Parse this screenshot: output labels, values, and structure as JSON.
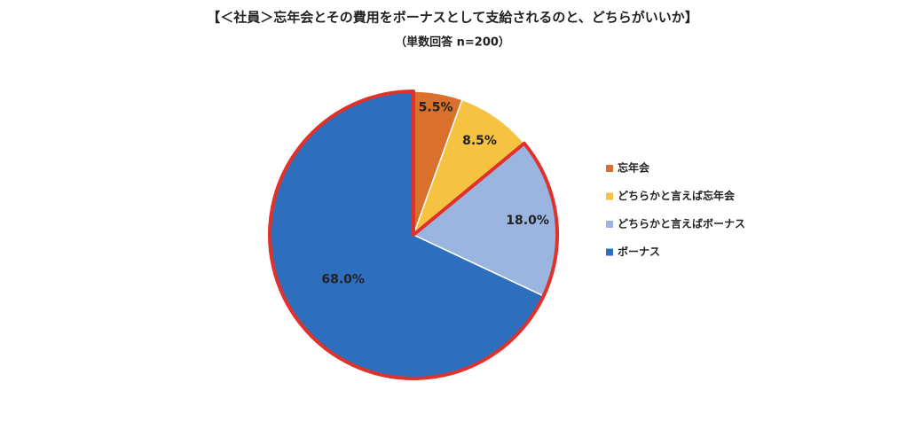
{
  "chart_data": {
    "type": "pie",
    "title": "【＜社員＞忘年会とその費用をボーナスとして支給されるのと、どちらがいいか】",
    "subtitle": "（単数回答 n=200）",
    "categories": [
      "忘年会",
      "どちらかと言えば忘年会",
      "どちらかと言えばボーナス",
      "ボーナス"
    ],
    "values": [
      5.5,
      8.5,
      18.0,
      68.0
    ],
    "value_labels": [
      "5.5%",
      "8.5%",
      "18.0%",
      "68.0%"
    ],
    "colors": [
      "#d9702b",
      "#f5c242",
      "#9ab6e0",
      "#2e6fbd"
    ],
    "legend": "right"
  }
}
